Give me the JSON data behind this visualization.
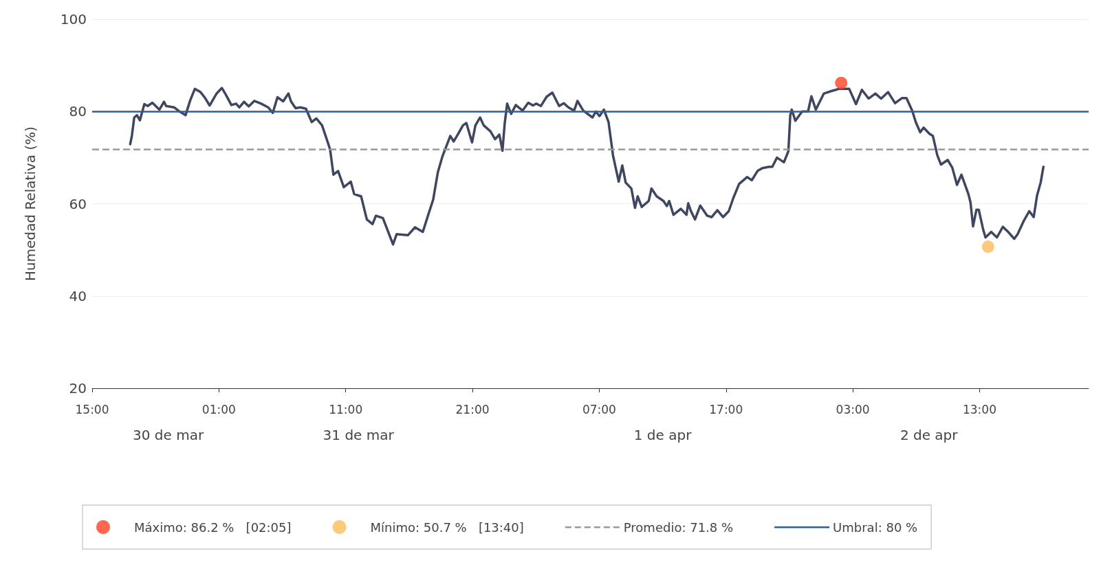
{
  "chart_data": {
    "type": "line",
    "ylabel": "Humedad Relativa (%)",
    "xlim": [
      "--03-30T15:00",
      "--04-02T21:36"
    ],
    "xticks": [
      {
        "value": "--03-30T15:00",
        "label": "15:00"
      },
      {
        "value": "--03-31T01:00",
        "label": "01:00"
      },
      {
        "value": "--03-31T11:00",
        "label": "11:00"
      },
      {
        "value": "--03-31T21:00",
        "label": "21:00"
      },
      {
        "value": "--04-01T07:00",
        "label": "07:00"
      },
      {
        "value": "--04-01T17:00",
        "label": "17:00"
      },
      {
        "value": "--04-02T03:00",
        "label": "03:00"
      },
      {
        "value": "--04-02T13:00",
        "label": "13:00"
      }
    ],
    "x2lim": [
      "--03-30T15:00",
      "--04-02T21:36"
    ],
    "x2ticks": [
      {
        "value": "--03-30T21:00",
        "label": "30 de mar"
      },
      {
        "value": "--03-31T12:00",
        "label": "31 de mar"
      },
      {
        "value": "--04-01T12:00",
        "label": "1 de apr"
      },
      {
        "value": "--04-02T09:00",
        "label": "2 de apr"
      }
    ],
    "ylim": [
      20,
      100
    ],
    "yticks": [
      20,
      40,
      60,
      80,
      100
    ],
    "grid": "y",
    "legend": "bottom",
    "marker": "none",
    "line_style": "solid",
    "series": [
      {
        "color": "#3f4760",
        "x": [
          "--03-30T18:00",
          "--03-30T18:08",
          "--03-30T18:19",
          "--03-30T18:32",
          "--03-30T18:46",
          "--03-30T19:07",
          "--03-30T19:23",
          "--03-30T19:45",
          "--03-30T20:18",
          "--03-30T20:40",
          "--03-30T20:50",
          "--03-30T21:28",
          "--03-30T21:50",
          "--03-30T22:22",
          "--03-30T22:44",
          "--03-30T23:06",
          "--03-30T23:33",
          "--03-30T23:55",
          "--03-31T00:16",
          "--03-31T00:49",
          "--03-31T01:14",
          "--03-31T01:32",
          "--03-31T01:59",
          "--03-31T02:21",
          "--03-31T02:37",
          "--03-31T02:59",
          "--03-31T03:21",
          "--03-31T03:48",
          "--03-31T04:20",
          "--03-31T04:53",
          "--03-31T05:15",
          "--03-31T05:37",
          "--03-31T06:04",
          "--03-31T06:29",
          "--03-31T06:41",
          "--03-31T07:03",
          "--03-31T07:25",
          "--03-31T07:52",
          "--03-31T08:19",
          "--03-31T08:41",
          "--03-31T09:08",
          "--03-31T09:25",
          "--03-31T09:46",
          "--03-31T10:02",
          "--03-31T10:24",
          "--03-31T10:51",
          "--03-31T11:24",
          "--03-31T11:40",
          "--03-31T12:13",
          "--03-31T12:40",
          "--03-31T13:07",
          "--03-31T13:23",
          "--03-31T13:56",
          "--03-31T14:23",
          "--03-31T14:44",
          "--03-31T15:01",
          "--03-31T15:55",
          "--03-31T16:28",
          "--03-31T17:05",
          "--03-31T17:27",
          "--03-31T17:54",
          "--03-31T18:16",
          "--03-31T18:38",
          "--03-31T18:59",
          "--03-31T19:15",
          "--03-31T19:31",
          "--03-31T19:53",
          "--03-31T20:15",
          "--03-31T20:31",
          "--03-31T20:58",
          "--03-31T21:14",
          "--03-31T21:36",
          "--03-31T21:53",
          "--03-31T22:25",
          "--03-31T22:47",
          "--03-31T23:07",
          "--03-31T23:22",
          "--03-31T23:32",
          "--03-31T23:44",
          "--04-01T00:03",
          "--04-01T00:25",
          "--04-01T00:57",
          "--04-01T01:24",
          "--04-01T01:46",
          "--04-01T02:02",
          "--04-01T02:24",
          "--04-01T02:51",
          "--04-01T03:18",
          "--04-01T03:50",
          "--04-01T04:12",
          "--04-01T04:34",
          "--04-01T05:01",
          "--04-01T05:17",
          "--04-01T05:44",
          "--04-01T06:28",
          "--04-01T06:44",
          "--04-01T07:01",
          "--04-01T07:22",
          "--04-01T07:44",
          "--04-01T08:05",
          "--04-01T08:32",
          "--04-01T08:49",
          "--04-01T09:05",
          "--04-01T09:32",
          "--04-01T09:49",
          "--04-01T10:02",
          "--04-01T10:21",
          "--04-01T10:54",
          "--04-01T11:07",
          "--04-01T11:32",
          "--04-01T12:04",
          "--04-01T12:20",
          "--04-01T12:31",
          "--04-01T12:51",
          "--04-01T13:26",
          "--04-01T13:53",
          "--04-01T14:01",
          "--04-01T14:14",
          "--04-01T14:33",
          "--04-01T14:58",
          "--04-01T15:31",
          "--04-01T15:52",
          "--04-01T16:19",
          "--04-01T16:46",
          "--04-01T17:13",
          "--04-01T17:35",
          "--04-01T18:02",
          "--04-01T18:40",
          "--04-01T19:02",
          "--04-01T19:29",
          "--04-01T19:51",
          "--04-01T20:23",
          "--04-01T20:39",
          "--04-01T21:01",
          "--04-01T21:34",
          "--04-01T21:55",
          "--04-01T22:04",
          "--04-01T22:11",
          "--04-01T22:28",
          "--04-01T23:00",
          "--04-01T23:28",
          "--04-01T23:44",
          "--04-02T00:05",
          "--04-02T00:43",
          "--04-02T01:16",
          "--04-02T01:54",
          "--04-02T02:43",
          "--04-02T03:15",
          "--04-02T03:43",
          "--04-02T04:15",
          "--04-02T04:47",
          "--04-02T05:14",
          "--04-02T05:47",
          "--04-02T06:20",
          "--04-02T06:52",
          "--04-02T07:14",
          "--04-02T07:41",
          "--04-02T07:58",
          "--04-02T08:19",
          "--04-02T08:35",
          "--04-02T09:02",
          "--04-02T09:19",
          "--04-02T09:40",
          "--04-02T09:57",
          "--04-02T10:29",
          "--04-02T10:51",
          "--04-02T11:13",
          "--04-02T11:34",
          "--04-02T12:07",
          "--04-02T12:17",
          "--04-02T12:29",
          "--04-02T12:45",
          "--04-02T12:56",
          "--04-02T13:17",
          "--04-02T13:28",
          "--04-02T13:55",
          "--04-02T14:22",
          "--04-02T14:50",
          "--04-02T15:17",
          "--04-02T15:44",
          "--04-02T16:00",
          "--04-02T16:27",
          "--04-02T16:55",
          "--04-02T17:16",
          "--04-02T17:32",
          "--04-02T17:49",
          "--04-02T18:02"
        ],
        "values": [
          72.9,
          74.7,
          78.7,
          79.2,
          78.1,
          81.6,
          81.2,
          81.9,
          80.4,
          82.1,
          81.2,
          80.9,
          80.1,
          79.2,
          82.4,
          84.9,
          84.2,
          82.9,
          81.3,
          83.9,
          85.1,
          83.7,
          81.4,
          81.7,
          80.9,
          82.1,
          81.1,
          82.3,
          81.7,
          80.9,
          79.7,
          83.1,
          82.2,
          83.9,
          82.2,
          80.7,
          80.9,
          80.6,
          77.7,
          78.5,
          77.0,
          74.7,
          71.8,
          66.3,
          67.1,
          63.6,
          64.8,
          62.1,
          61.6,
          56.6,
          55.6,
          57.4,
          56.9,
          53.7,
          51.2,
          53.4,
          53.2,
          54.9,
          53.9,
          57.1,
          60.9,
          66.8,
          70.3,
          72.8,
          74.7,
          73.5,
          75.2,
          77.0,
          77.5,
          73.3,
          77.0,
          78.7,
          77.0,
          75.7,
          74.0,
          75.0,
          71.5,
          77.2,
          81.7,
          79.5,
          81.4,
          80.2,
          81.9,
          81.3,
          81.7,
          81.2,
          83.2,
          84.1,
          81.2,
          81.8,
          80.9,
          80.2,
          82.3,
          80.2,
          78.7,
          80.0,
          79.0,
          80.4,
          77.7,
          70.5,
          64.8,
          68.3,
          64.6,
          63.3,
          59.1,
          61.6,
          59.3,
          60.6,
          63.3,
          61.6,
          60.6,
          59.5,
          60.6,
          57.6,
          58.9,
          57.6,
          60.1,
          58.4,
          56.6,
          59.6,
          57.4,
          57.1,
          58.6,
          57.1,
          58.4,
          61.3,
          64.3,
          65.8,
          65.1,
          67.1,
          67.7,
          68.0,
          68.0,
          70.0,
          69.0,
          71.4,
          79.2,
          80.4,
          78.0,
          80.0,
          80.0,
          83.3,
          80.4,
          83.9,
          84.4,
          84.9,
          84.9,
          81.6,
          84.7,
          82.8,
          83.9,
          82.8,
          84.2,
          81.8,
          82.9,
          82.9,
          80.2,
          77.7,
          75.5,
          76.5,
          75.2,
          74.7,
          70.5,
          68.5,
          69.5,
          67.8,
          64.1,
          66.3,
          62.1,
          60.3,
          55.1,
          58.7,
          58.7,
          54.4,
          52.7,
          53.9,
          52.7,
          55.0,
          53.8,
          52.4,
          53.4,
          56.1,
          58.4,
          57.1,
          61.8,
          64.6,
          68.0
        ]
      },
      {
        "type": "scatter",
        "name": "Máximo: 86.2 %   [02:05]",
        "color": "#ff4122",
        "marker": "circle",
        "x": [
          "--04-02T02:05"
        ],
        "values": [
          86.2
        ]
      },
      {
        "type": "scatter",
        "name": "Mínimo: 50.7 %   [13:40]",
        "color": "#fdbb5c",
        "marker": "circle",
        "x": [
          "--04-02T13:40"
        ],
        "values": [
          50.7
        ]
      }
    ],
    "ref_lines": [
      {
        "axis": "y",
        "value": 71.8,
        "label": "Promedio: 71.8 %",
        "color": "#999999",
        "line_style": "dashed"
      },
      {
        "axis": "y",
        "value": 80,
        "label": "Umbral: 80 %",
        "color": "#2f5f96",
        "line_style": "solid"
      }
    ]
  }
}
